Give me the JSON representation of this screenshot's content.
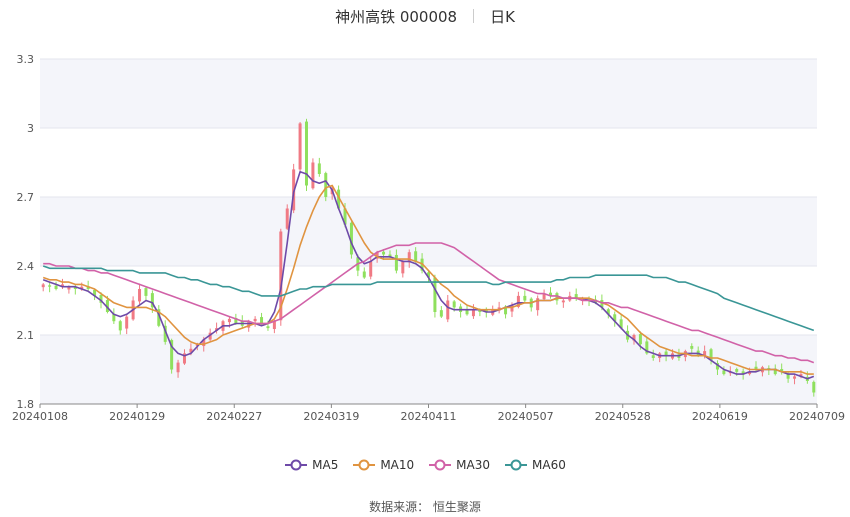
{
  "header": {
    "stock_name": "神州高铁 000008",
    "period": "日K"
  },
  "footer": {
    "source": "数据来源： 恒生聚源"
  },
  "chart_data": {
    "type": "candlestick",
    "ylim": [
      1.8,
      3.3
    ],
    "yticks": [
      1.8,
      2.1,
      2.4,
      2.7,
      3,
      3.3
    ],
    "xtick_labels": [
      "20240108",
      "20240129",
      "20240227",
      "20240319",
      "20240411",
      "20240507",
      "20240528",
      "20240619",
      "20240709"
    ],
    "xtick_index": [
      0,
      15,
      30,
      45,
      60,
      75,
      90,
      105,
      120
    ],
    "colors": {
      "up": "#f07a84",
      "down": "#8fe05d",
      "MA5": "#6e4aa8",
      "MA10": "#e09440",
      "MA30": "#d162a8",
      "MA60": "#3a9696"
    },
    "closes": [
      2.32,
      2.31,
      2.3,
      2.32,
      2.31,
      2.3,
      2.31,
      2.3,
      2.27,
      2.24,
      2.2,
      2.16,
      2.12,
      2.18,
      2.25,
      2.3,
      2.27,
      2.22,
      2.14,
      2.07,
      1.95,
      1.98,
      2.02,
      2.04,
      2.06,
      2.08,
      2.11,
      2.13,
      2.16,
      2.17,
      2.15,
      2.14,
      2.16,
      2.17,
      2.15,
      2.13,
      2.16,
      2.55,
      2.65,
      2.82,
      3.02,
      2.75,
      2.85,
      2.8,
      2.7,
      2.74,
      2.65,
      2.58,
      2.45,
      2.38,
      2.35,
      2.42,
      2.46,
      2.45,
      2.44,
      2.38,
      2.42,
      2.46,
      2.42,
      2.38,
      2.35,
      2.2,
      2.18,
      2.25,
      2.22,
      2.2,
      2.19,
      2.21,
      2.2,
      2.2,
      2.21,
      2.22,
      2.19,
      2.23,
      2.27,
      2.25,
      2.22,
      2.26,
      2.28,
      2.27,
      2.25,
      2.25,
      2.27,
      2.26,
      2.26,
      2.25,
      2.24,
      2.22,
      2.19,
      2.16,
      2.13,
      2.08,
      2.1,
      2.06,
      2.02,
      2.0,
      2.02,
      2.01,
      2.02,
      2.0,
      2.03,
      2.04,
      2.01,
      2.03,
      1.99,
      1.95,
      1.93,
      1.94,
      1.94,
      1.93,
      1.94,
      1.95,
      1.96,
      1.95,
      1.93,
      1.94,
      1.91,
      1.92,
      1.93,
      1.9,
      1.85
    ],
    "series": [
      {
        "name": "MA5",
        "values": [
          2.34,
          2.33,
          2.32,
          2.31,
          2.31,
          2.31,
          2.3,
          2.29,
          2.27,
          2.25,
          2.22,
          2.19,
          2.18,
          2.19,
          2.21,
          2.23,
          2.25,
          2.24,
          2.19,
          2.12,
          2.05,
          2.02,
          2.01,
          2.02,
          2.05,
          2.08,
          2.1,
          2.12,
          2.14,
          2.14,
          2.15,
          2.15,
          2.15,
          2.15,
          2.14,
          2.15,
          2.2,
          2.3,
          2.5,
          2.72,
          2.81,
          2.8,
          2.77,
          2.76,
          2.77,
          2.73,
          2.65,
          2.58,
          2.5,
          2.44,
          2.41,
          2.42,
          2.44,
          2.44,
          2.44,
          2.43,
          2.42,
          2.42,
          2.41,
          2.39,
          2.35,
          2.3,
          2.25,
          2.22,
          2.21,
          2.21,
          2.21,
          2.21,
          2.21,
          2.2,
          2.2,
          2.21,
          2.22,
          2.23,
          2.24,
          2.24,
          2.24,
          2.25,
          2.25,
          2.25,
          2.26,
          2.26,
          2.26,
          2.26,
          2.26,
          2.25,
          2.24,
          2.22,
          2.19,
          2.16,
          2.13,
          2.1,
          2.08,
          2.05,
          2.03,
          2.02,
          2.01,
          2.01,
          2.01,
          2.01,
          2.02,
          2.02,
          2.02,
          2.01,
          1.99,
          1.97,
          1.95,
          1.94,
          1.93,
          1.93,
          1.94,
          1.94,
          1.95,
          1.95,
          1.95,
          1.94,
          1.93,
          1.93,
          1.92,
          1.91,
          1.92
        ]
      },
      {
        "name": "MA10",
        "values": [
          2.35,
          2.34,
          2.34,
          2.33,
          2.33,
          2.32,
          2.32,
          2.31,
          2.3,
          2.28,
          2.26,
          2.24,
          2.23,
          2.22,
          2.22,
          2.22,
          2.22,
          2.21,
          2.2,
          2.18,
          2.15,
          2.12,
          2.09,
          2.07,
          2.06,
          2.06,
          2.07,
          2.08,
          2.1,
          2.11,
          2.12,
          2.13,
          2.14,
          2.15,
          2.15,
          2.15,
          2.17,
          2.22,
          2.3,
          2.39,
          2.49,
          2.57,
          2.64,
          2.7,
          2.74,
          2.75,
          2.7,
          2.65,
          2.6,
          2.55,
          2.5,
          2.46,
          2.44,
          2.43,
          2.43,
          2.43,
          2.43,
          2.43,
          2.42,
          2.41,
          2.38,
          2.35,
          2.32,
          2.3,
          2.27,
          2.25,
          2.23,
          2.22,
          2.21,
          2.21,
          2.21,
          2.21,
          2.22,
          2.22,
          2.23,
          2.24,
          2.24,
          2.25,
          2.25,
          2.25,
          2.26,
          2.26,
          2.26,
          2.26,
          2.26,
          2.26,
          2.25,
          2.24,
          2.23,
          2.21,
          2.19,
          2.17,
          2.14,
          2.11,
          2.09,
          2.07,
          2.05,
          2.04,
          2.03,
          2.02,
          2.02,
          2.01,
          2.01,
          2.01,
          2.0,
          2.0,
          1.99,
          1.98,
          1.97,
          1.96,
          1.95,
          1.95,
          1.95,
          1.95,
          1.95,
          1.94,
          1.94,
          1.94,
          1.94,
          1.93,
          1.93
        ]
      },
      {
        "name": "MA30",
        "values": [
          2.41,
          2.41,
          2.4,
          2.4,
          2.4,
          2.39,
          2.39,
          2.38,
          2.38,
          2.37,
          2.37,
          2.36,
          2.35,
          2.34,
          2.33,
          2.32,
          2.31,
          2.3,
          2.29,
          2.28,
          2.27,
          2.26,
          2.25,
          2.24,
          2.23,
          2.22,
          2.21,
          2.2,
          2.19,
          2.18,
          2.17,
          2.16,
          2.16,
          2.15,
          2.15,
          2.15,
          2.16,
          2.17,
          2.19,
          2.21,
          2.23,
          2.25,
          2.27,
          2.29,
          2.31,
          2.33,
          2.35,
          2.37,
          2.39,
          2.41,
          2.42,
          2.44,
          2.46,
          2.47,
          2.48,
          2.49,
          2.49,
          2.49,
          2.5,
          2.5,
          2.5,
          2.5,
          2.5,
          2.49,
          2.48,
          2.46,
          2.44,
          2.42,
          2.4,
          2.38,
          2.36,
          2.34,
          2.33,
          2.32,
          2.31,
          2.3,
          2.29,
          2.28,
          2.28,
          2.27,
          2.27,
          2.26,
          2.26,
          2.26,
          2.25,
          2.25,
          2.25,
          2.24,
          2.24,
          2.23,
          2.22,
          2.22,
          2.21,
          2.2,
          2.19,
          2.18,
          2.17,
          2.16,
          2.15,
          2.14,
          2.13,
          2.12,
          2.12,
          2.11,
          2.1,
          2.09,
          2.08,
          2.07,
          2.06,
          2.05,
          2.04,
          2.03,
          2.03,
          2.02,
          2.01,
          2.01,
          2.0,
          2.0,
          1.99,
          1.99,
          1.98
        ]
      },
      {
        "name": "MA60",
        "values": [
          2.4,
          2.39,
          2.39,
          2.39,
          2.39,
          2.39,
          2.39,
          2.39,
          2.39,
          2.39,
          2.38,
          2.38,
          2.38,
          2.38,
          2.38,
          2.37,
          2.37,
          2.37,
          2.37,
          2.37,
          2.36,
          2.35,
          2.35,
          2.34,
          2.34,
          2.33,
          2.32,
          2.32,
          2.31,
          2.31,
          2.3,
          2.29,
          2.29,
          2.28,
          2.27,
          2.27,
          2.27,
          2.27,
          2.28,
          2.29,
          2.3,
          2.3,
          2.31,
          2.31,
          2.31,
          2.32,
          2.32,
          2.32,
          2.32,
          2.32,
          2.32,
          2.32,
          2.33,
          2.33,
          2.33,
          2.33,
          2.33,
          2.33,
          2.33,
          2.33,
          2.33,
          2.33,
          2.33,
          2.33,
          2.33,
          2.33,
          2.33,
          2.33,
          2.33,
          2.33,
          2.32,
          2.32,
          2.33,
          2.33,
          2.33,
          2.33,
          2.33,
          2.33,
          2.33,
          2.33,
          2.34,
          2.34,
          2.35,
          2.35,
          2.35,
          2.35,
          2.36,
          2.36,
          2.36,
          2.36,
          2.36,
          2.36,
          2.36,
          2.36,
          2.36,
          2.35,
          2.35,
          2.35,
          2.34,
          2.33,
          2.33,
          2.32,
          2.31,
          2.3,
          2.29,
          2.28,
          2.26,
          2.25,
          2.24,
          2.23,
          2.22,
          2.21,
          2.2,
          2.19,
          2.18,
          2.17,
          2.16,
          2.15,
          2.14,
          2.13,
          2.12
        ]
      }
    ]
  }
}
